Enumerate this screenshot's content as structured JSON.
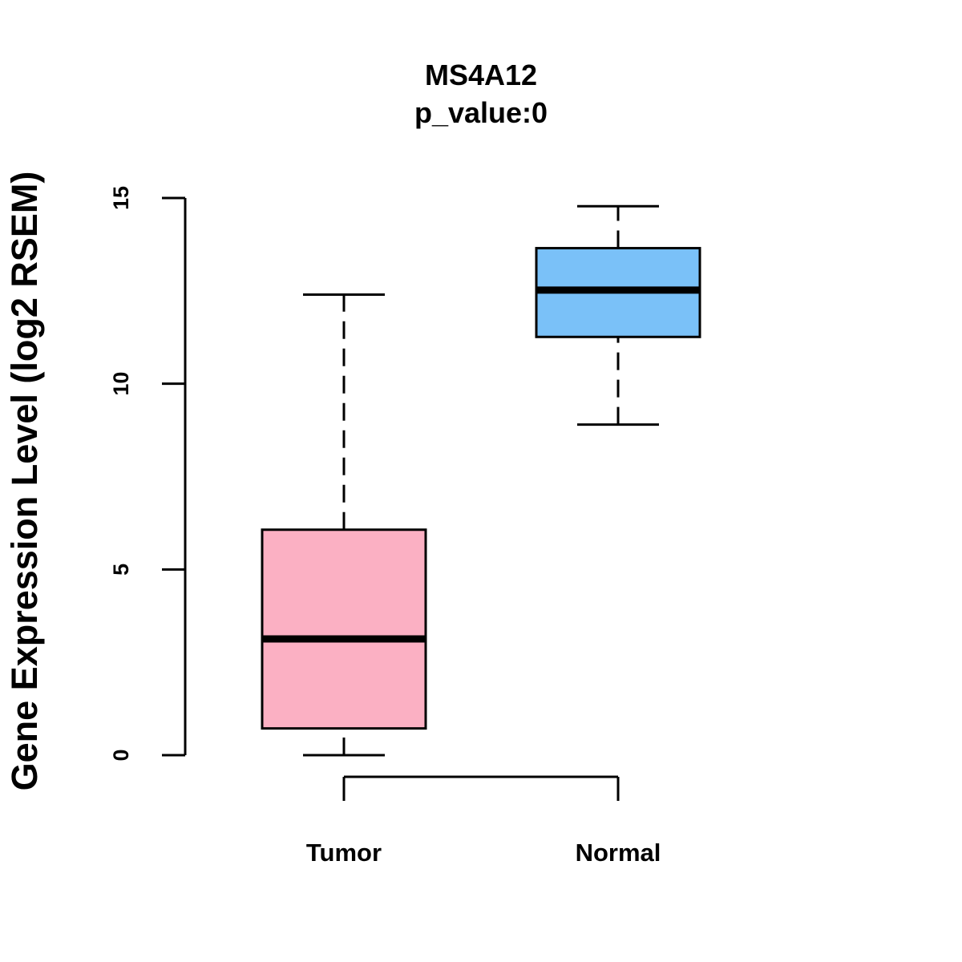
{
  "chart_data": {
    "type": "boxplot",
    "title": "MS4A12",
    "subtitle": "p_value:0",
    "xlabel": "",
    "ylabel": "Gene Expression Level (log2 RSEM)",
    "ylim": [
      0,
      15
    ],
    "yticks": [
      0,
      5,
      10,
      15
    ],
    "grid": false,
    "categories": [
      "Tumor",
      "Normal"
    ],
    "boxes": [
      {
        "name": "Tumor",
        "min": 0.0,
        "q1": 0.72,
        "median": 3.13,
        "q3": 6.07,
        "max": 12.4,
        "color": "#FBB0C3"
      },
      {
        "name": "Normal",
        "min": 8.9,
        "q1": 11.26,
        "median": 12.52,
        "q3": 13.65,
        "max": 14.78,
        "color": "#7AC1F8"
      }
    ]
  }
}
